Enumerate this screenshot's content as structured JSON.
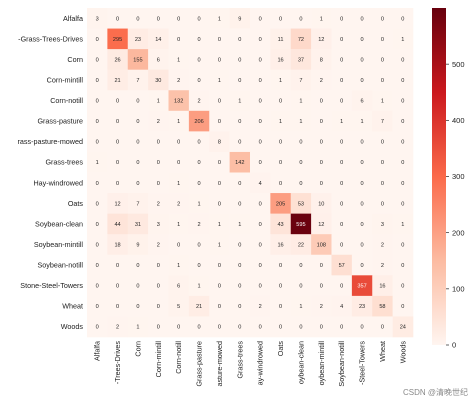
{
  "chart_data": {
    "type": "heatmap",
    "title": "",
    "xlabel": "",
    "ylabel": "",
    "categories": [
      "Alfalfa",
      "Corn-notill... -Grass-Trees-Drives",
      "Corn",
      "Corn-mintill",
      "Corn-notill",
      "Grass-pasture",
      "Grass-pasture-mowed",
      "Grass-trees",
      "Hay-windrowed",
      "Oats",
      "Soybean-clean",
      "Soybean-mintill",
      "Soybean-notill",
      "Stone-Steel-Towers",
      "Wheat",
      "Woods"
    ],
    "y_labels": [
      "Alfalfa",
      "-Grass-Trees-Drives",
      "Corn",
      "Corn-mintill",
      "Corn-notill",
      "Grass-pasture",
      "rass-pasture-mowed",
      "Grass-trees",
      "Hay-windrowed",
      "Oats",
      "Soybean-clean",
      "Soybean-mintill",
      "Soybean-notill",
      "Stone-Steel-Towers",
      "Wheat",
      "Woods"
    ],
    "x_labels": [
      "Alfalfa",
      "-Trees-Drives",
      "Corn",
      "Corn-mintill",
      "Corn-notill",
      "Grass-pasture",
      "asture-mowed",
      "Grass-trees",
      "ay-windrowed",
      "Oats",
      "oybean-clean",
      "oybean-mintill",
      "Soybean-notill",
      "-Steel-Towers",
      "Wheat",
      "Woods"
    ],
    "values": [
      [
        3,
        0,
        0,
        0,
        0,
        0,
        1,
        9,
        0,
        0,
        0,
        1,
        0,
        0,
        0,
        0
      ],
      [
        0,
        295,
        23,
        14,
        0,
        0,
        0,
        0,
        0,
        11,
        72,
        12,
        0,
        0,
        0,
        1
      ],
      [
        0,
        26,
        155,
        6,
        1,
        0,
        0,
        0,
        0,
        16,
        37,
        8,
        0,
        0,
        0,
        0
      ],
      [
        0,
        21,
        7,
        30,
        2,
        0,
        1,
        0,
        0,
        1,
        7,
        2,
        0,
        0,
        0,
        0
      ],
      [
        0,
        0,
        0,
        1,
        132,
        2,
        0,
        1,
        0,
        0,
        1,
        0,
        0,
        6,
        1,
        0
      ],
      [
        0,
        0,
        0,
        2,
        1,
        206,
        0,
        0,
        0,
        1,
        1,
        0,
        1,
        1,
        7,
        0
      ],
      [
        0,
        0,
        0,
        0,
        0,
        0,
        8,
        0,
        0,
        0,
        0,
        0,
        0,
        0,
        0,
        0
      ],
      [
        1,
        0,
        0,
        0,
        0,
        0,
        0,
        142,
        0,
        0,
        0,
        0,
        0,
        0,
        0,
        0
      ],
      [
        0,
        0,
        0,
        0,
        1,
        0,
        0,
        0,
        4,
        0,
        0,
        0,
        0,
        0,
        0,
        0
      ],
      [
        0,
        12,
        7,
        2,
        2,
        1,
        0,
        0,
        0,
        205,
        53,
        10,
        0,
        0,
        0,
        0
      ],
      [
        0,
        44,
        31,
        3,
        1,
        2,
        1,
        1,
        0,
        43,
        595,
        12,
        0,
        0,
        3,
        1
      ],
      [
        0,
        18,
        9,
        2,
        0,
        0,
        1,
        0,
        0,
        16,
        22,
        108,
        0,
        0,
        2,
        0
      ],
      [
        0,
        0,
        0,
        0,
        1,
        0,
        0,
        0,
        0,
        0,
        0,
        0,
        57,
        0,
        2,
        0
      ],
      [
        0,
        0,
        0,
        0,
        6,
        1,
        0,
        0,
        0,
        0,
        0,
        0,
        0,
        357,
        16,
        0
      ],
      [
        0,
        0,
        0,
        0,
        5,
        21,
        0,
        0,
        2,
        0,
        1,
        2,
        4,
        23,
        58,
        0
      ],
      [
        0,
        2,
        1,
        0,
        0,
        0,
        0,
        0,
        0,
        0,
        0,
        0,
        0,
        0,
        0,
        24
      ]
    ],
    "colorbar": {
      "min": 0,
      "max": 600,
      "ticks": [
        0,
        100,
        200,
        300,
        400,
        500
      ],
      "colormap": "Reds",
      "colors": [
        "#fff5f0",
        "#fcbba1",
        "#fb6a4a",
        "#cb181d",
        "#67000d"
      ]
    },
    "grid": false
  },
  "watermark": "CSDN @清晚世纪"
}
